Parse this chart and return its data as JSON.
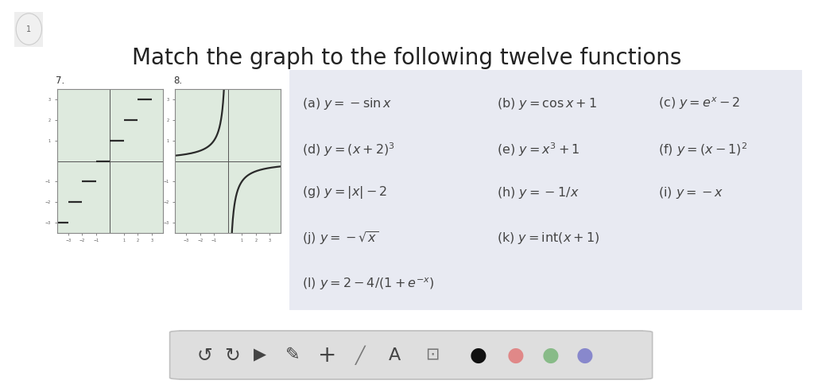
{
  "title": "Match the graph to the following twelve functions",
  "title_fontsize": 20,
  "page_bg": "#ffffff",
  "graph_bg": "#deeade",
  "panel_bg": "#e8eaf2",
  "functions_col1": [
    "(a) $y = -\\sin x$",
    "(d) $y = (x + 2)^3$",
    "(g) $y = |x| - 2$",
    "(j) $y = -\\sqrt{x}$",
    "(l) $y = 2 - 4/(1 + e^{-x})$"
  ],
  "functions_col2": [
    "(b) $y = \\cos x + 1$",
    "(e) $y = x^3 + 1$",
    "(h) $y = -1/x$",
    "(k) $y = \\mathrm{int}(x + 1)$",
    ""
  ],
  "functions_col3": [
    "(c) $y = e^x - 2$",
    "(f) $y = (x - 1)^2$",
    "(i) $y = -x$",
    "",
    ""
  ],
  "graph7_label": "7.",
  "graph8_label": "8.",
  "toolbar_bg": "#dedede",
  "graph_border": "#888888",
  "axis_color": "#555555",
  "curve_color": "#2a2a2a",
  "text_color": "#444444",
  "label_color": "#555555",
  "page_num": "1"
}
